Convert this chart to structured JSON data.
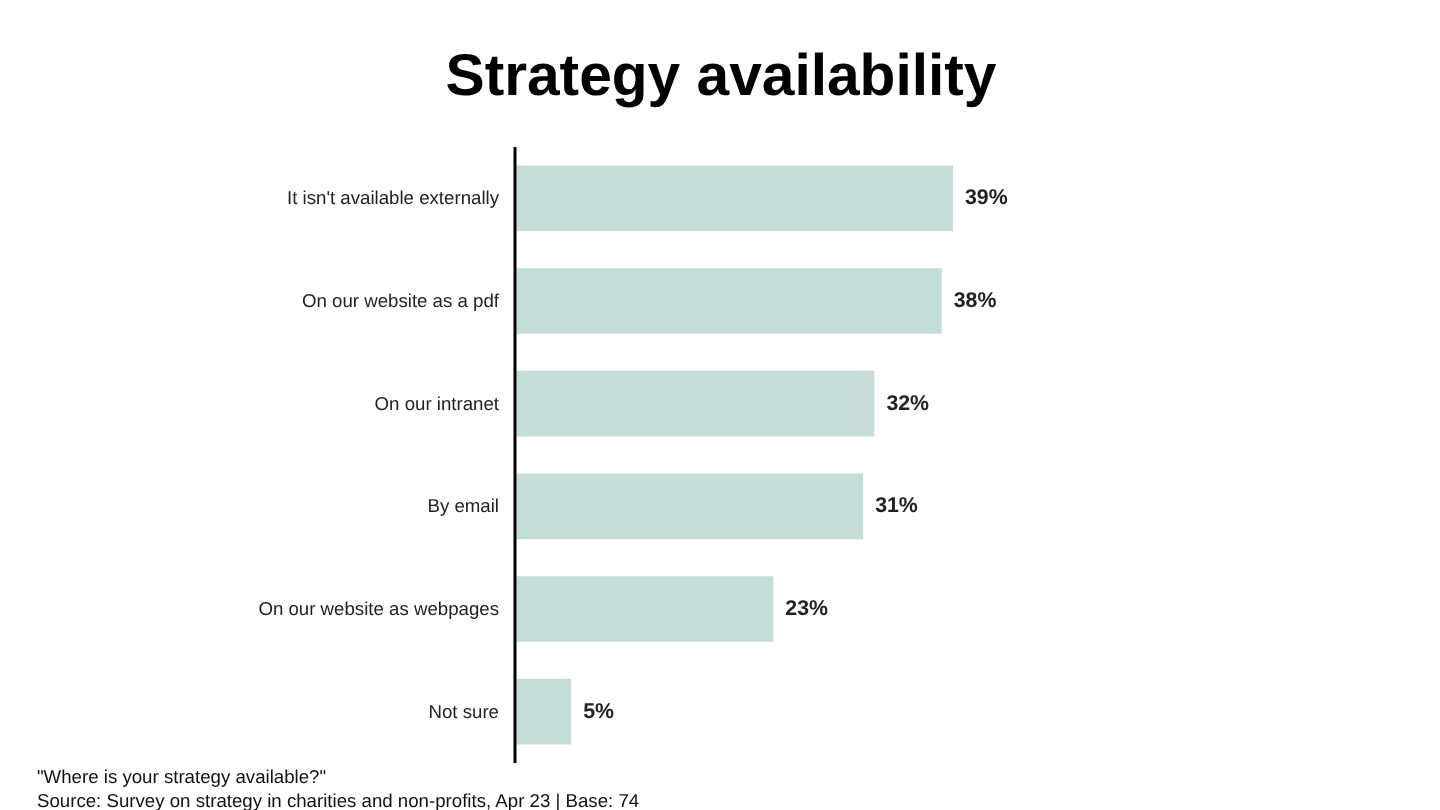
{
  "chart_data": {
    "type": "bar",
    "orientation": "horizontal",
    "title": "Strategy availability",
    "categories": [
      "It isn't available externally",
      "On our website as a pdf",
      "On our intranet",
      "By email",
      "On our website as webpages",
      "Not sure"
    ],
    "values": [
      39,
      38,
      32,
      31,
      23,
      5
    ],
    "value_labels": [
      "39%",
      "38%",
      "32%",
      "31%",
      "23%",
      "5%"
    ],
    "color": "#c5ddd9",
    "grid": false,
    "legend": false,
    "tick_labels": "y",
    "annotations": [
      "\"Where is your strategy available?\"",
      "Source: Survey on strategy in charities and non-profits, Apr 23 | Base: 74"
    ]
  }
}
